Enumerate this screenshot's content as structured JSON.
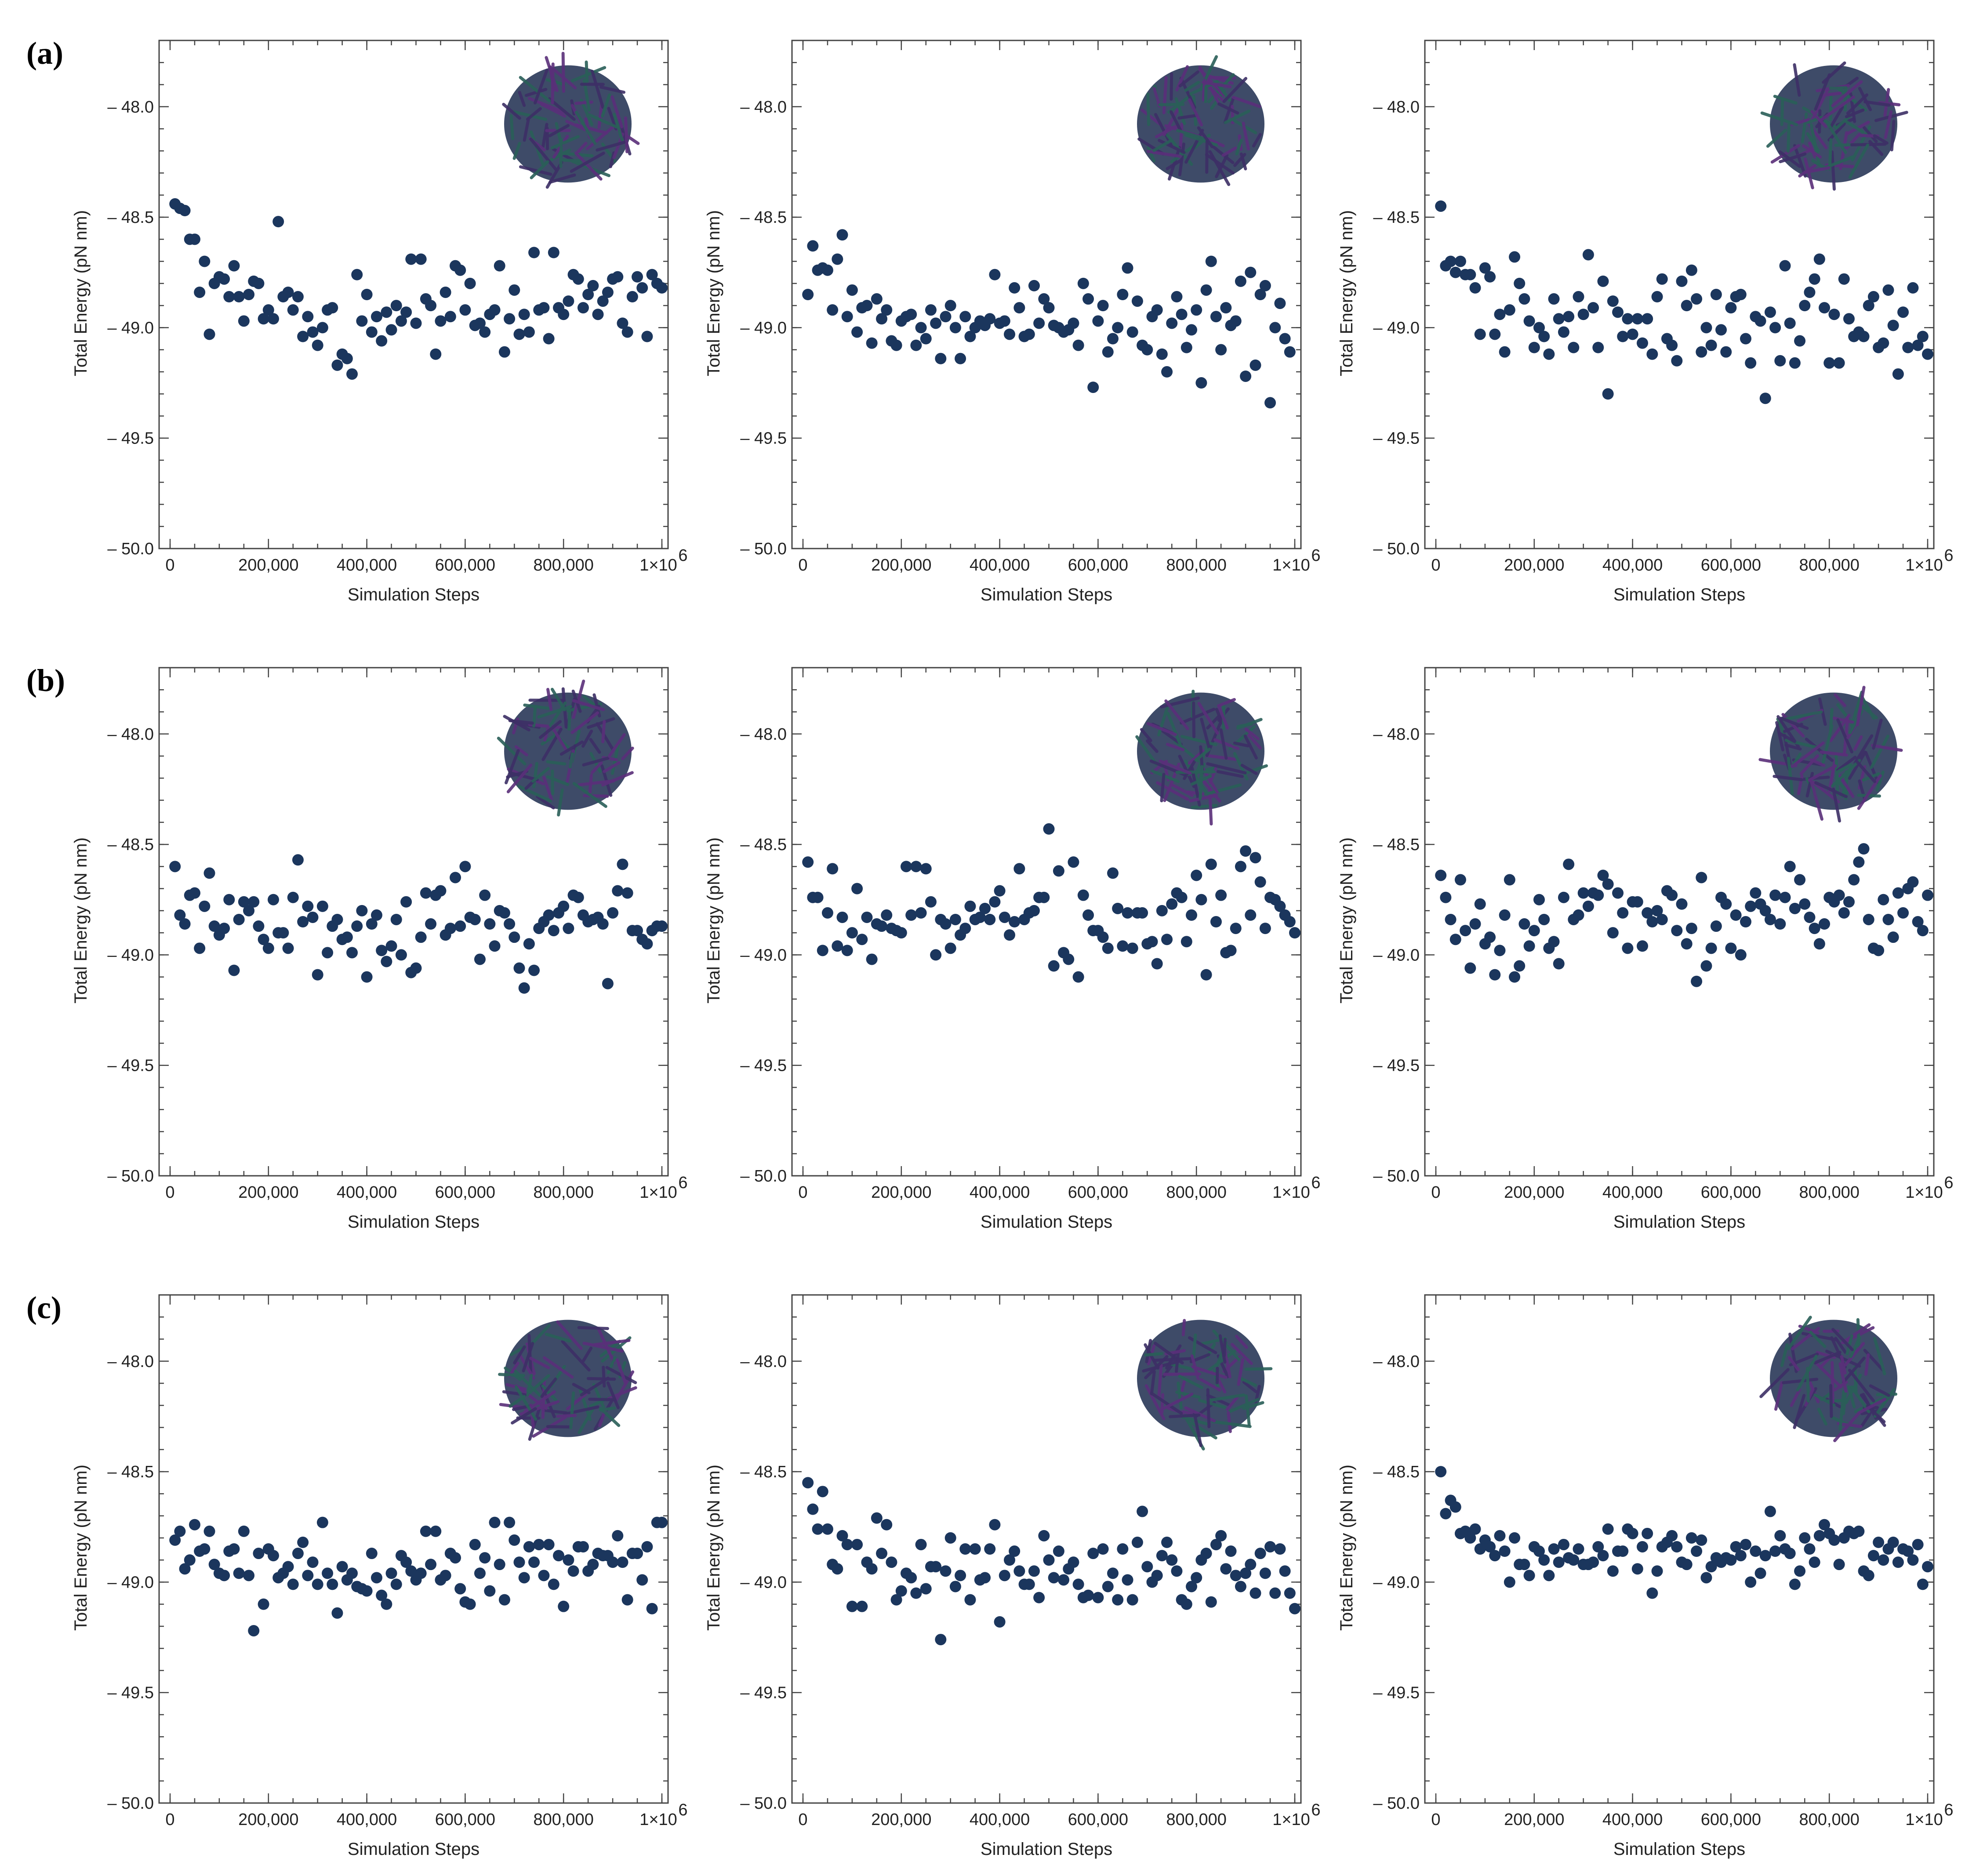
{
  "figure": {
    "panel_labels": [
      "(a)",
      "(b)",
      "(c)"
    ],
    "point_color": "#1b365d",
    "inset_colors": [
      "#3d2f66",
      "#2a5f58",
      "#5a2f7a",
      "#1c2b4d"
    ]
  },
  "chart_data": [
    {
      "type": "scatter",
      "row": "(a)",
      "title": "",
      "xlabel": "Simulation Steps",
      "ylabel": "Total Energy (pN nm)",
      "xlim": [
        0,
        1000000
      ],
      "ylim": [
        -50.0,
        -47.7
      ],
      "xticks": [
        "0",
        "200,000",
        "400,000",
        "600,000",
        "800,000"
      ],
      "x_end_tick": "1×10",
      "x_end_exp": "6",
      "yticks": [
        "– 48.0",
        "– 48.5",
        "– 49.0",
        "– 49.5",
        "– 50.0"
      ],
      "x_step": 10000,
      "y": [
        -48.44,
        -48.46,
        -48.47,
        -48.6,
        -48.6,
        -48.84,
        -48.7,
        -49.03,
        -48.8,
        -48.77,
        -48.78,
        -48.86,
        -48.72,
        -48.86,
        -48.97,
        -48.85,
        -48.79,
        -48.8,
        -48.96,
        -48.92,
        -48.96,
        -48.52,
        -48.86,
        -48.84,
        -48.92,
        -48.86,
        -49.04,
        -48.95,
        -49.02,
        -49.08,
        -49.0,
        -48.92,
        -48.91,
        -49.17,
        -49.12,
        -49.14,
        -49.21,
        -48.76,
        -48.97,
        -48.85,
        -49.02,
        -48.95,
        -49.06,
        -48.93,
        -49.01,
        -48.9,
        -48.97,
        -48.93,
        -48.69,
        -48.98,
        -48.69,
        -48.87,
        -48.9,
        -49.12,
        -48.97,
        -48.84,
        -48.95,
        -48.72,
        -48.74,
        -48.92,
        -48.8,
        -48.99,
        -48.98,
        -49.02,
        -48.94,
        -48.92,
        -48.72,
        -49.11,
        -48.96,
        -48.83,
        -49.03,
        -48.94,
        -49.02,
        -48.66,
        -48.92,
        -48.91,
        -49.05,
        -48.66,
        -48.91,
        -48.94,
        -48.88,
        -48.76,
        -48.78,
        -48.91,
        -48.85,
        -48.81,
        -48.94,
        -48.88,
        -48.84,
        -48.78,
        -48.77,
        -48.98,
        -49.02,
        -48.86,
        -48.77,
        -48.82,
        -49.04,
        -48.76,
        -48.8,
        -48.82
      ]
    },
    {
      "type": "scatter",
      "row": "(a)",
      "title": "",
      "xlabel": "Simulation Steps",
      "ylabel": "Total Energy (pN nm)",
      "xlim": [
        0,
        1000000
      ],
      "ylim": [
        -50.0,
        -47.7
      ],
      "xticks": [
        "0",
        "200,000",
        "400,000",
        "600,000",
        "800,000"
      ],
      "x_end_tick": "1×10",
      "x_end_exp": "6",
      "yticks": [
        "– 48.0",
        "– 48.5",
        "– 49.0",
        "– 49.5",
        "– 50.0"
      ],
      "x_step": 10000,
      "y": [
        -48.85,
        -48.63,
        -48.74,
        -48.73,
        -48.74,
        -48.92,
        -48.69,
        -48.58,
        -48.95,
        -48.83,
        -49.02,
        -48.91,
        -48.9,
        -49.07,
        -48.87,
        -48.96,
        -48.92,
        -49.06,
        -49.08,
        -48.97,
        -48.95,
        -48.94,
        -49.08,
        -49.0,
        -49.05,
        -48.92,
        -48.98,
        -49.14,
        -48.95,
        -48.9,
        -49.0,
        -49.14,
        -48.95,
        -49.04,
        -49.0,
        -48.97,
        -48.99,
        -48.96,
        -48.76,
        -48.98,
        -48.97,
        -49.03,
        -48.82,
        -48.91,
        -49.04,
        -49.03,
        -48.81,
        -48.98,
        -48.87,
        -48.91,
        -48.99,
        -49.0,
        -49.02,
        -49.01,
        -48.98,
        -49.08,
        -48.8,
        -48.87,
        -49.27,
        -48.97,
        -48.9,
        -49.11,
        -49.05,
        -49.0,
        -48.85,
        -48.73,
        -49.02,
        -48.88,
        -49.08,
        -49.1,
        -48.95,
        -48.92,
        -49.12,
        -49.2,
        -48.98,
        -48.86,
        -48.94,
        -49.09,
        -49.01,
        -48.92,
        -49.25,
        -48.83,
        -48.7,
        -48.95,
        -49.1,
        -48.91,
        -48.99,
        -48.97,
        -48.79,
        -49.22,
        -48.75,
        -49.17,
        -48.85,
        -48.81,
        -49.34,
        -49.0,
        -48.89,
        -49.05,
        -49.11
      ]
    },
    {
      "type": "scatter",
      "row": "(a)",
      "title": "",
      "xlabel": "Simulation Steps",
      "ylabel": "Total Energy (pN nm)",
      "xlim": [
        0,
        1000000
      ],
      "ylim": [
        -50.0,
        -47.7
      ],
      "xticks": [
        "0",
        "200,000",
        "400,000",
        "600,000",
        "800,000"
      ],
      "x_end_tick": "1×10",
      "x_end_exp": "6",
      "yticks": [
        "– 48.0",
        "– 48.5",
        "– 49.0",
        "– 49.5",
        "– 50.0"
      ],
      "x_step": 10000,
      "y": [
        -48.45,
        -48.72,
        -48.7,
        -48.75,
        -48.7,
        -48.76,
        -48.76,
        -48.82,
        -49.03,
        -48.73,
        -48.77,
        -49.03,
        -48.94,
        -49.11,
        -48.92,
        -48.68,
        -48.8,
        -48.87,
        -48.97,
        -49.09,
        -49.0,
        -49.04,
        -49.12,
        -48.87,
        -48.96,
        -49.02,
        -48.95,
        -49.09,
        -48.86,
        -48.94,
        -48.67,
        -48.91,
        -49.09,
        -48.79,
        -49.3,
        -48.88,
        -48.93,
        -49.04,
        -48.96,
        -49.03,
        -48.96,
        -49.07,
        -48.96,
        -49.12,
        -48.86,
        -48.78,
        -49.05,
        -49.08,
        -49.15,
        -48.79,
        -48.9,
        -48.74,
        -48.87,
        -49.11,
        -49.0,
        -49.08,
        -48.85,
        -49.01,
        -49.11,
        -48.91,
        -48.86,
        -48.85,
        -49.05,
        -49.16,
        -48.95,
        -48.97,
        -49.32,
        -48.93,
        -49.0,
        -49.15,
        -48.72,
        -48.98,
        -49.16,
        -49.06,
        -48.9,
        -48.84,
        -48.78,
        -48.69,
        -48.91,
        -49.16,
        -48.94,
        -49.16,
        -48.78,
        -48.96,
        -49.04,
        -49.02,
        -49.04,
        -48.9,
        -48.86,
        -49.09,
        -49.07,
        -48.83,
        -48.99,
        -49.21,
        -48.93,
        -49.09,
        -48.82,
        -49.08,
        -49.04,
        -49.12
      ]
    },
    {
      "type": "scatter",
      "row": "(b)",
      "title": "",
      "xlabel": "Simulation Steps",
      "ylabel": "Total Energy (pN nm)",
      "xlim": [
        0,
        1000000
      ],
      "ylim": [
        -50.0,
        -47.7
      ],
      "xticks": [
        "0",
        "200,000",
        "400,000",
        "600,000",
        "800,000"
      ],
      "x_end_tick": "1×10",
      "x_end_exp": "6",
      "yticks": [
        "– 48.0",
        "– 48.5",
        "– 49.0",
        "– 49.5",
        "– 50.0"
      ],
      "x_step": 10000,
      "y": [
        -48.6,
        -48.82,
        -48.86,
        -48.73,
        -48.72,
        -48.97,
        -48.78,
        -48.63,
        -48.87,
        -48.91,
        -48.88,
        -48.75,
        -49.07,
        -48.84,
        -48.76,
        -48.8,
        -48.76,
        -48.87,
        -48.93,
        -48.97,
        -48.75,
        -48.9,
        -48.9,
        -48.97,
        -48.74,
        -48.57,
        -48.85,
        -48.78,
        -48.83,
        -49.09,
        -48.78,
        -48.99,
        -48.87,
        -48.84,
        -48.93,
        -48.92,
        -48.99,
        -48.87,
        -48.8,
        -49.1,
        -48.86,
        -48.82,
        -48.98,
        -49.03,
        -48.96,
        -48.84,
        -49.0,
        -48.76,
        -49.08,
        -49.06,
        -48.92,
        -48.72,
        -48.86,
        -48.73,
        -48.71,
        -48.91,
        -48.88,
        -48.65,
        -48.87,
        -48.6,
        -48.83,
        -48.84,
        -49.02,
        -48.73,
        -48.86,
        -48.96,
        -48.8,
        -48.81,
        -48.86,
        -48.92,
        -49.06,
        -49.15,
        -48.95,
        -49.07,
        -48.88,
        -48.85,
        -48.82,
        -48.89,
        -48.81,
        -48.78,
        -48.88,
        -48.73,
        -48.74,
        -48.82,
        -48.85,
        -48.84,
        -48.83,
        -48.86,
        -49.13,
        -48.81,
        -48.71,
        -48.59,
        -48.72,
        -48.89,
        -48.89,
        -48.93,
        -48.95,
        -48.89,
        -48.87,
        -48.87
      ]
    },
    {
      "type": "scatter",
      "row": "(b)",
      "title": "",
      "xlabel": "Simulation Steps",
      "ylabel": "Total Energy (pN nm)",
      "xlim": [
        0,
        1000000
      ],
      "ylim": [
        -50.0,
        -47.7
      ],
      "xticks": [
        "0",
        "200,000",
        "400,000",
        "600,000",
        "800,000"
      ],
      "x_end_tick": "1×10",
      "x_end_exp": "6",
      "yticks": [
        "– 48.0",
        "– 48.5",
        "– 49.0",
        "– 49.5",
        "– 50.0"
      ],
      "x_step": 10000,
      "y": [
        -48.58,
        -48.74,
        -48.74,
        -48.98,
        -48.81,
        -48.61,
        -48.96,
        -48.83,
        -48.98,
        -48.9,
        -48.7,
        -48.93,
        -48.83,
        -49.02,
        -48.86,
        -48.87,
        -48.82,
        -48.88,
        -48.89,
        -48.9,
        -48.6,
        -48.82,
        -48.6,
        -48.81,
        -48.61,
        -48.76,
        -49.0,
        -48.84,
        -48.86,
        -48.97,
        -48.84,
        -48.91,
        -48.88,
        -48.78,
        -48.84,
        -48.83,
        -48.79,
        -48.84,
        -48.76,
        -48.71,
        -48.83,
        -48.91,
        -48.85,
        -48.61,
        -48.84,
        -48.81,
        -48.8,
        -48.74,
        -48.74,
        -48.43,
        -49.05,
        -48.62,
        -48.99,
        -49.02,
        -48.58,
        -49.1,
        -48.73,
        -48.82,
        -48.89,
        -48.89,
        -48.92,
        -48.97,
        -48.63,
        -48.79,
        -48.96,
        -48.81,
        -48.97,
        -48.81,
        -48.81,
        -48.95,
        -48.94,
        -49.04,
        -48.8,
        -48.93,
        -48.77,
        -48.72,
        -48.74,
        -48.94,
        -48.82,
        -48.64,
        -48.75,
        -49.09,
        -48.59,
        -48.85,
        -48.73,
        -48.99,
        -48.98,
        -48.88,
        -48.6,
        -48.53,
        -48.82,
        -48.56,
        -48.67,
        -48.88,
        -48.74,
        -48.75,
        -48.78,
        -48.82,
        -48.85,
        -48.9
      ]
    },
    {
      "type": "scatter",
      "row": "(b)",
      "title": "",
      "xlabel": "Simulation Steps",
      "ylabel": "Total Energy (pN nm)",
      "xlim": [
        0,
        1000000
      ],
      "ylim": [
        -50.0,
        -47.7
      ],
      "xticks": [
        "0",
        "200,000",
        "400,000",
        "600,000",
        "800,000"
      ],
      "x_end_tick": "1×10",
      "x_end_exp": "6",
      "yticks": [
        "– 48.0",
        "– 48.5",
        "– 49.0",
        "– 49.5",
        "– 50.0"
      ],
      "x_step": 10000,
      "y": [
        -48.64,
        -48.74,
        -48.84,
        -48.93,
        -48.66,
        -48.89,
        -49.06,
        -48.86,
        -48.77,
        -48.95,
        -48.92,
        -49.09,
        -48.98,
        -48.82,
        -48.66,
        -49.1,
        -49.05,
        -48.86,
        -48.96,
        -48.89,
        -48.75,
        -48.84,
        -48.97,
        -48.94,
        -49.04,
        -48.74,
        -48.59,
        -48.84,
        -48.82,
        -48.72,
        -48.78,
        -48.72,
        -48.73,
        -48.64,
        -48.68,
        -48.9,
        -48.72,
        -48.81,
        -48.97,
        -48.76,
        -48.76,
        -48.96,
        -48.81,
        -48.85,
        -48.8,
        -48.84,
        -48.71,
        -48.73,
        -48.89,
        -48.77,
        -48.95,
        -48.88,
        -49.12,
        -48.65,
        -49.05,
        -48.97,
        -48.87,
        -48.74,
        -48.77,
        -48.97,
        -48.82,
        -49.0,
        -48.85,
        -48.78,
        -48.72,
        -48.77,
        -48.8,
        -48.84,
        -48.73,
        -48.86,
        -48.74,
        -48.6,
        -48.79,
        -48.66,
        -48.77,
        -48.83,
        -48.88,
        -48.95,
        -48.86,
        -48.74,
        -48.76,
        -48.73,
        -48.81,
        -48.76,
        -48.66,
        -48.58,
        -48.52,
        -48.84,
        -48.97,
        -48.98,
        -48.75,
        -48.84,
        -48.92,
        -48.72,
        -48.81,
        -48.7,
        -48.67,
        -48.85,
        -48.89,
        -48.73
      ]
    },
    {
      "type": "scatter",
      "row": "(c)",
      "title": "",
      "xlabel": "Simulation Steps",
      "ylabel": "Total Energy (pN nm)",
      "xlim": [
        0,
        1000000
      ],
      "ylim": [
        -50.0,
        -47.7
      ],
      "xticks": [
        "0",
        "200,000",
        "400,000",
        "600,000",
        "800,000"
      ],
      "x_end_tick": "1×10",
      "x_end_exp": "6",
      "yticks": [
        "– 48.0",
        "– 48.5",
        "– 49.0",
        "– 49.5",
        "– 50.0"
      ],
      "x_step": 10000,
      "y": [
        -48.81,
        -48.77,
        -48.94,
        -48.9,
        -48.74,
        -48.86,
        -48.85,
        -48.77,
        -48.92,
        -48.96,
        -48.97,
        -48.86,
        -48.85,
        -48.96,
        -48.77,
        -48.97,
        -49.22,
        -48.87,
        -49.1,
        -48.85,
        -48.88,
        -48.98,
        -48.96,
        -48.93,
        -49.01,
        -48.87,
        -48.82,
        -48.97,
        -48.91,
        -49.01,
        -48.73,
        -48.96,
        -49.01,
        -49.14,
        -48.93,
        -48.99,
        -48.96,
        -49.02,
        -49.03,
        -49.04,
        -48.87,
        -48.98,
        -49.06,
        -49.1,
        -48.96,
        -49.01,
        -48.88,
        -48.91,
        -48.95,
        -48.99,
        -48.96,
        -48.77,
        -48.92,
        -48.77,
        -48.99,
        -48.97,
        -48.87,
        -48.89,
        -49.03,
        -49.09,
        -49.1,
        -48.83,
        -48.96,
        -48.89,
        -49.04,
        -48.73,
        -48.92,
        -49.08,
        -48.73,
        -48.81,
        -48.91,
        -48.98,
        -48.84,
        -48.91,
        -48.83,
        -48.97,
        -48.83,
        -49.01,
        -48.88,
        -49.11,
        -48.9,
        -48.95,
        -48.84,
        -48.84,
        -48.95,
        -48.92,
        -48.87,
        -48.88,
        -48.88,
        -48.91,
        -48.79,
        -48.91,
        -49.08,
        -48.87,
        -48.87,
        -48.99,
        -48.84,
        -49.12,
        -48.73,
        -48.73
      ]
    },
    {
      "type": "scatter",
      "row": "(c)",
      "title": "",
      "xlabel": "Simulation Steps",
      "ylabel": "Total Energy (pN nm)",
      "xlim": [
        0,
        1000000
      ],
      "ylim": [
        -50.0,
        -47.7
      ],
      "xticks": [
        "0",
        "200,000",
        "400,000",
        "600,000",
        "800,000"
      ],
      "x_end_tick": "1×10",
      "x_end_exp": "6",
      "yticks": [
        "– 48.0",
        "– 48.5",
        "– 49.0",
        "– 49.5",
        "– 50.0"
      ],
      "x_step": 10000,
      "y": [
        -48.55,
        -48.67,
        -48.76,
        -48.59,
        -48.76,
        -48.92,
        -48.94,
        -48.79,
        -48.83,
        -49.11,
        -48.83,
        -49.11,
        -48.91,
        -48.94,
        -48.71,
        -48.87,
        -48.74,
        -48.91,
        -49.08,
        -49.04,
        -48.96,
        -48.98,
        -49.05,
        -48.83,
        -49.03,
        -48.93,
        -48.93,
        -49.26,
        -48.95,
        -48.8,
        -49.02,
        -48.97,
        -48.85,
        -49.08,
        -48.85,
        -48.99,
        -48.98,
        -48.85,
        -48.74,
        -49.18,
        -48.97,
        -48.9,
        -48.86,
        -48.95,
        -49.01,
        -49.01,
        -48.95,
        -49.07,
        -48.79,
        -48.9,
        -48.98,
        -48.86,
        -48.99,
        -48.94,
        -48.91,
        -49.01,
        -49.07,
        -49.06,
        -48.87,
        -49.07,
        -48.85,
        -49.02,
        -48.96,
        -49.08,
        -48.85,
        -48.99,
        -49.08,
        -48.82,
        -48.68,
        -48.93,
        -49.0,
        -48.97,
        -48.88,
        -48.82,
        -48.9,
        -48.95,
        -49.08,
        -49.1,
        -49.02,
        -48.98,
        -48.9,
        -48.87,
        -49.09,
        -48.83,
        -48.79,
        -48.94,
        -48.86,
        -48.97,
        -49.02,
        -48.96,
        -48.92,
        -49.05,
        -48.87,
        -48.96,
        -48.84,
        -49.05,
        -48.85,
        -48.95,
        -49.05,
        -49.12
      ]
    },
    {
      "type": "scatter",
      "row": "(c)",
      "title": "",
      "xlabel": "Simulation Steps",
      "ylabel": "Total Energy (pN nm)",
      "xlim": [
        0,
        1000000
      ],
      "ylim": [
        -50.0,
        -47.7
      ],
      "xticks": [
        "0",
        "200,000",
        "400,000",
        "600,000",
        "800,000"
      ],
      "x_end_tick": "1×10",
      "x_end_exp": "6",
      "yticks": [
        "– 48.0",
        "– 48.5",
        "– 49.0",
        "– 49.5",
        "– 50.0"
      ],
      "x_step": 10000,
      "y": [
        -48.5,
        -48.69,
        -48.63,
        -48.66,
        -48.78,
        -48.77,
        -48.8,
        -48.76,
        -48.85,
        -48.81,
        -48.84,
        -48.88,
        -48.79,
        -48.86,
        -49.0,
        -48.8,
        -48.92,
        -48.92,
        -48.97,
        -48.84,
        -48.86,
        -48.9,
        -48.97,
        -48.85,
        -48.91,
        -48.83,
        -48.89,
        -48.9,
        -48.85,
        -48.92,
        -48.92,
        -48.91,
        -48.84,
        -48.88,
        -48.76,
        -48.95,
        -48.86,
        -48.86,
        -48.76,
        -48.78,
        -48.94,
        -48.84,
        -48.78,
        -49.05,
        -48.95,
        -48.84,
        -48.82,
        -48.79,
        -48.84,
        -48.91,
        -48.92,
        -48.8,
        -48.86,
        -48.81,
        -48.98,
        -48.93,
        -48.89,
        -48.91,
        -48.89,
        -48.9,
        -48.84,
        -48.88,
        -48.83,
        -49.0,
        -48.86,
        -48.96,
        -48.88,
        -48.68,
        -48.86,
        -48.79,
        -48.85,
        -48.87,
        -49.01,
        -48.95,
        -48.8,
        -48.85,
        -48.91,
        -48.79,
        -48.74,
        -48.78,
        -48.81,
        -48.92,
        -48.8,
        -48.77,
        -48.78,
        -48.77,
        -48.95,
        -48.97,
        -48.88,
        -48.82,
        -48.9,
        -48.85,
        -48.82,
        -48.91,
        -48.85,
        -48.86,
        -48.9,
        -48.83,
        -49.01,
        -48.93
      ]
    }
  ]
}
